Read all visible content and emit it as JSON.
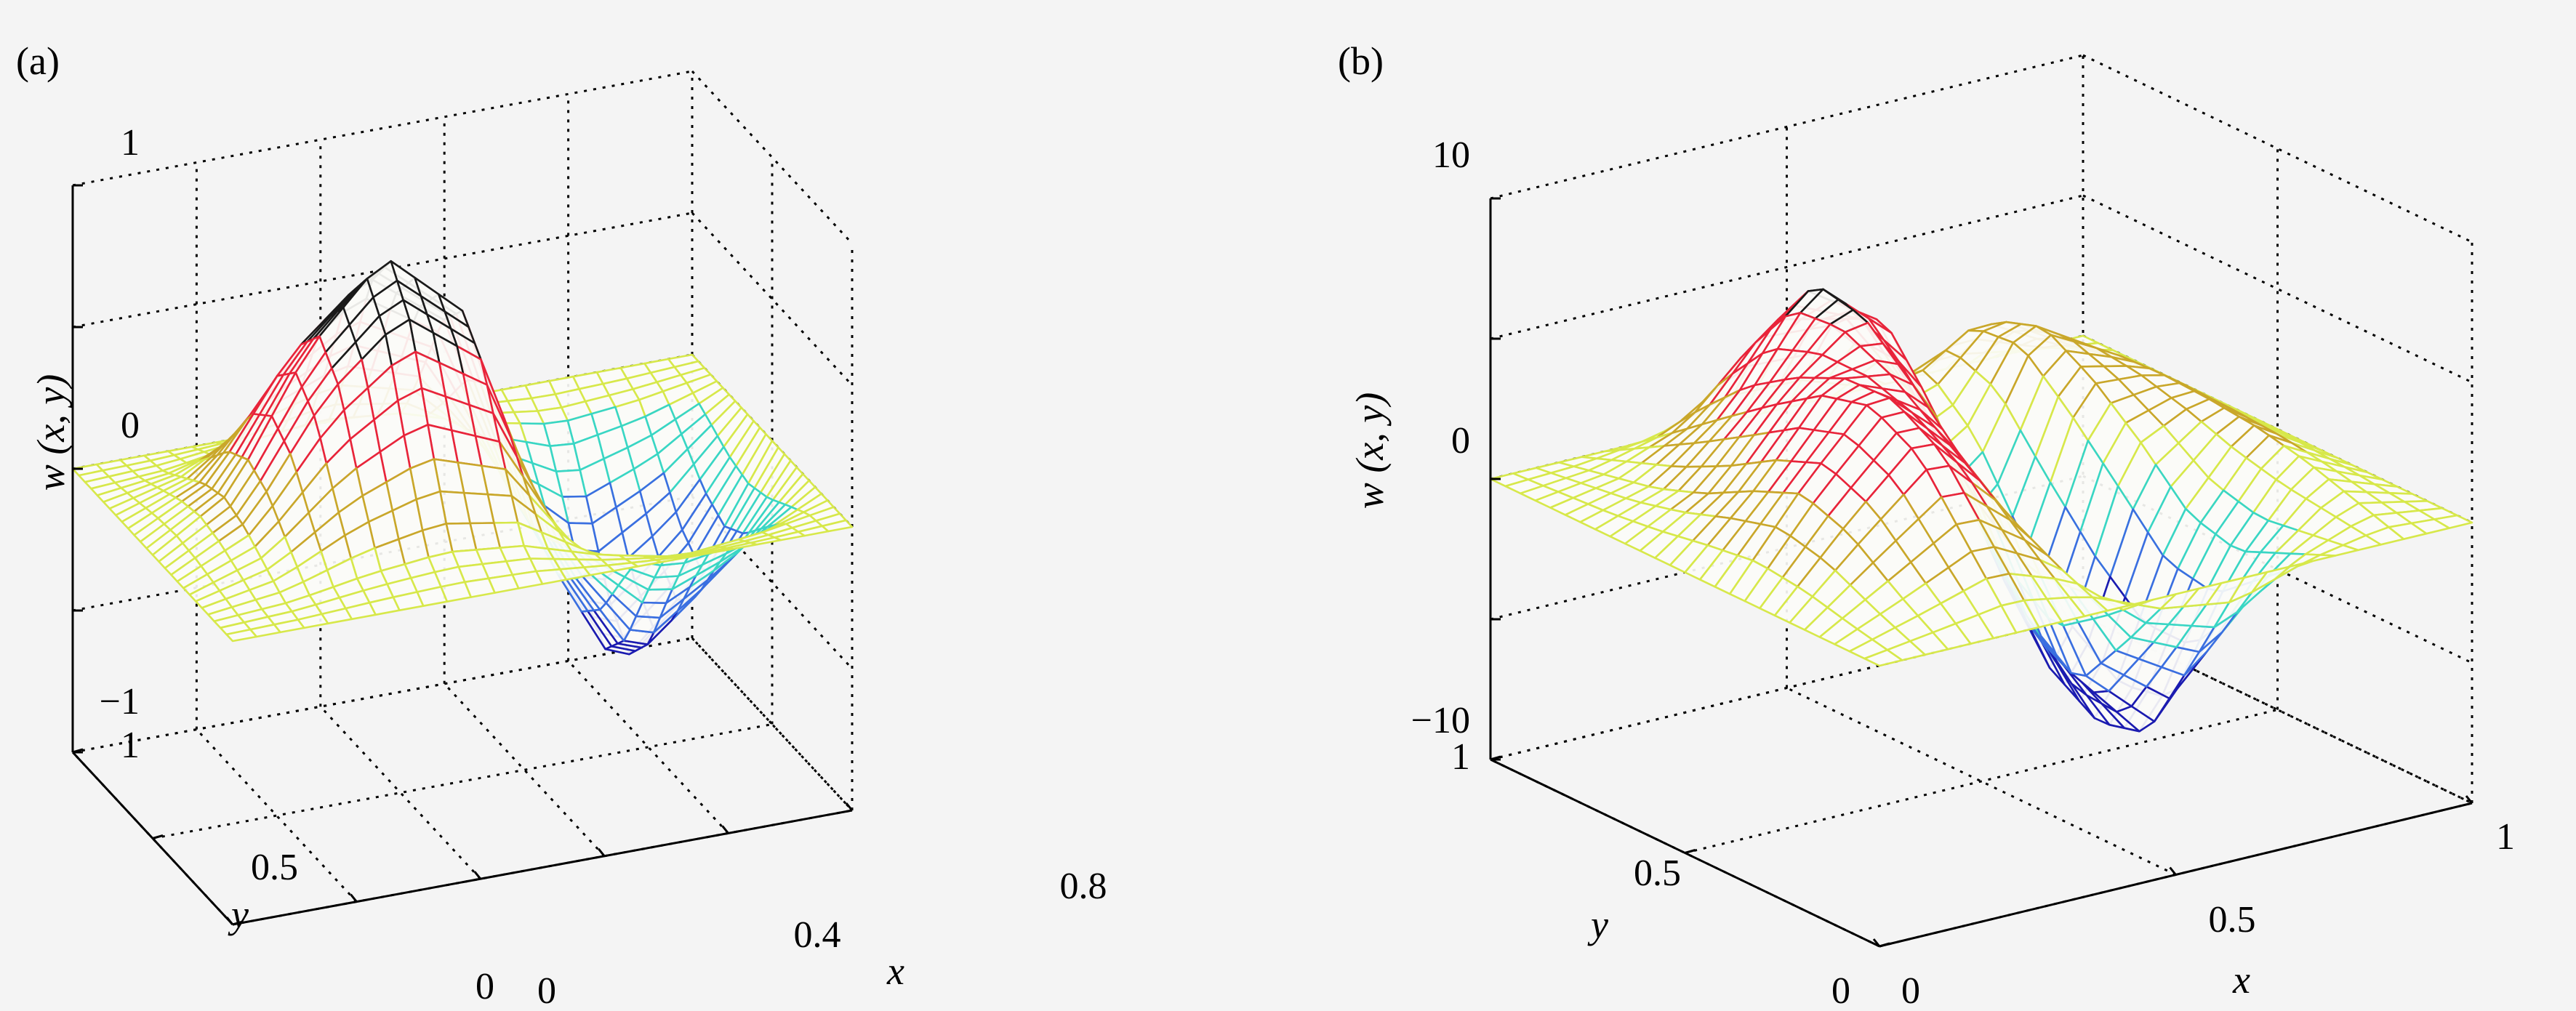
{
  "chart_data": [
    {
      "type": "surface",
      "panel_label": "(a)",
      "zlabel": "w (x, y)",
      "xlabel": "x",
      "ylabel": "y",
      "zlim": [
        -1,
        1
      ],
      "xlim": [
        0,
        1
      ],
      "ylim": [
        0,
        1
      ],
      "z_ticks": [
        "1",
        "0",
        "−1"
      ],
      "x_ticks": [
        "0",
        "0.4",
        "0.8"
      ],
      "y_ticks": [
        "1",
        "0.5",
        "0"
      ],
      "grid": true,
      "colormap": "jet",
      "surface": {
        "x": [
          0,
          0.125,
          0.25,
          0.375,
          0.5,
          0.625,
          0.75,
          0.875,
          1
        ],
        "y": [
          0,
          0.125,
          0.25,
          0.375,
          0.5,
          0.625,
          0.75,
          0.875,
          1
        ],
        "z": [
          [
            0,
            0,
            0,
            0,
            0,
            0,
            0,
            0,
            0
          ],
          [
            0,
            0.02,
            0.07,
            0.1,
            0.07,
            -0.02,
            -0.08,
            -0.05,
            0
          ],
          [
            0,
            0.08,
            0.28,
            0.4,
            0.3,
            -0.1,
            -0.32,
            -0.2,
            0
          ],
          [
            0,
            0.14,
            0.52,
            0.75,
            0.55,
            -0.18,
            -0.58,
            -0.36,
            0
          ],
          [
            0,
            0.17,
            0.62,
            0.9,
            0.66,
            -0.22,
            -0.7,
            -0.44,
            0
          ],
          [
            0,
            0.14,
            0.52,
            0.75,
            0.55,
            -0.18,
            -0.58,
            -0.36,
            0
          ],
          [
            0,
            0.08,
            0.28,
            0.4,
            0.3,
            -0.1,
            -0.32,
            -0.2,
            0
          ],
          [
            0,
            0.02,
            0.07,
            0.1,
            0.07,
            -0.02,
            -0.08,
            -0.05,
            0
          ],
          [
            0,
            0,
            0,
            0,
            0,
            0,
            0,
            0,
            0
          ]
        ]
      }
    },
    {
      "type": "surface",
      "panel_label": "(b)",
      "zlabel": "w (x, y)",
      "xlabel": "x",
      "ylabel": "y",
      "zlim": [
        -10,
        10
      ],
      "xlim": [
        0,
        1
      ],
      "ylim": [
        0,
        1
      ],
      "z_ticks": [
        "10",
        "0",
        "−10"
      ],
      "x_ticks": [
        "0",
        "0.5",
        "1"
      ],
      "y_ticks": [
        "1",
        "0.5",
        "0"
      ],
      "grid": true,
      "colormap": "jet",
      "surface": {
        "x": [
          0,
          0.125,
          0.25,
          0.375,
          0.5,
          0.625,
          0.75,
          0.875,
          1
        ],
        "y": [
          0,
          0.125,
          0.25,
          0.375,
          0.5,
          0.625,
          0.75,
          0.875,
          1
        ],
        "z": [
          [
            0,
            0,
            0,
            0,
            0,
            0,
            0,
            0,
            0
          ],
          [
            0,
            1.2,
            2.5,
            1.0,
            -2.5,
            -3.8,
            -1.0,
            0.6,
            0
          ],
          [
            0,
            2.6,
            5.0,
            2.2,
            -4.8,
            -7.4,
            -2.0,
            1.2,
            0
          ],
          [
            0,
            3.3,
            6.0,
            3.5,
            -3.5,
            -8.0,
            -1.5,
            1.6,
            0
          ],
          [
            0,
            2.5,
            5.6,
            5.2,
            -1.0,
            -7.0,
            0.5,
            1.8,
            0
          ],
          [
            0,
            1.5,
            4.4,
            6.6,
            2.5,
            -4.6,
            2.2,
            1.9,
            0
          ],
          [
            0,
            0.8,
            3.0,
            6.8,
            4.8,
            -1.2,
            3.4,
            1.8,
            0
          ],
          [
            0,
            0.4,
            1.5,
            4.2,
            4.0,
            1.0,
            2.8,
            1.2,
            0
          ],
          [
            0,
            0,
            0,
            0,
            0,
            0,
            0,
            0,
            0
          ]
        ]
      }
    }
  ]
}
